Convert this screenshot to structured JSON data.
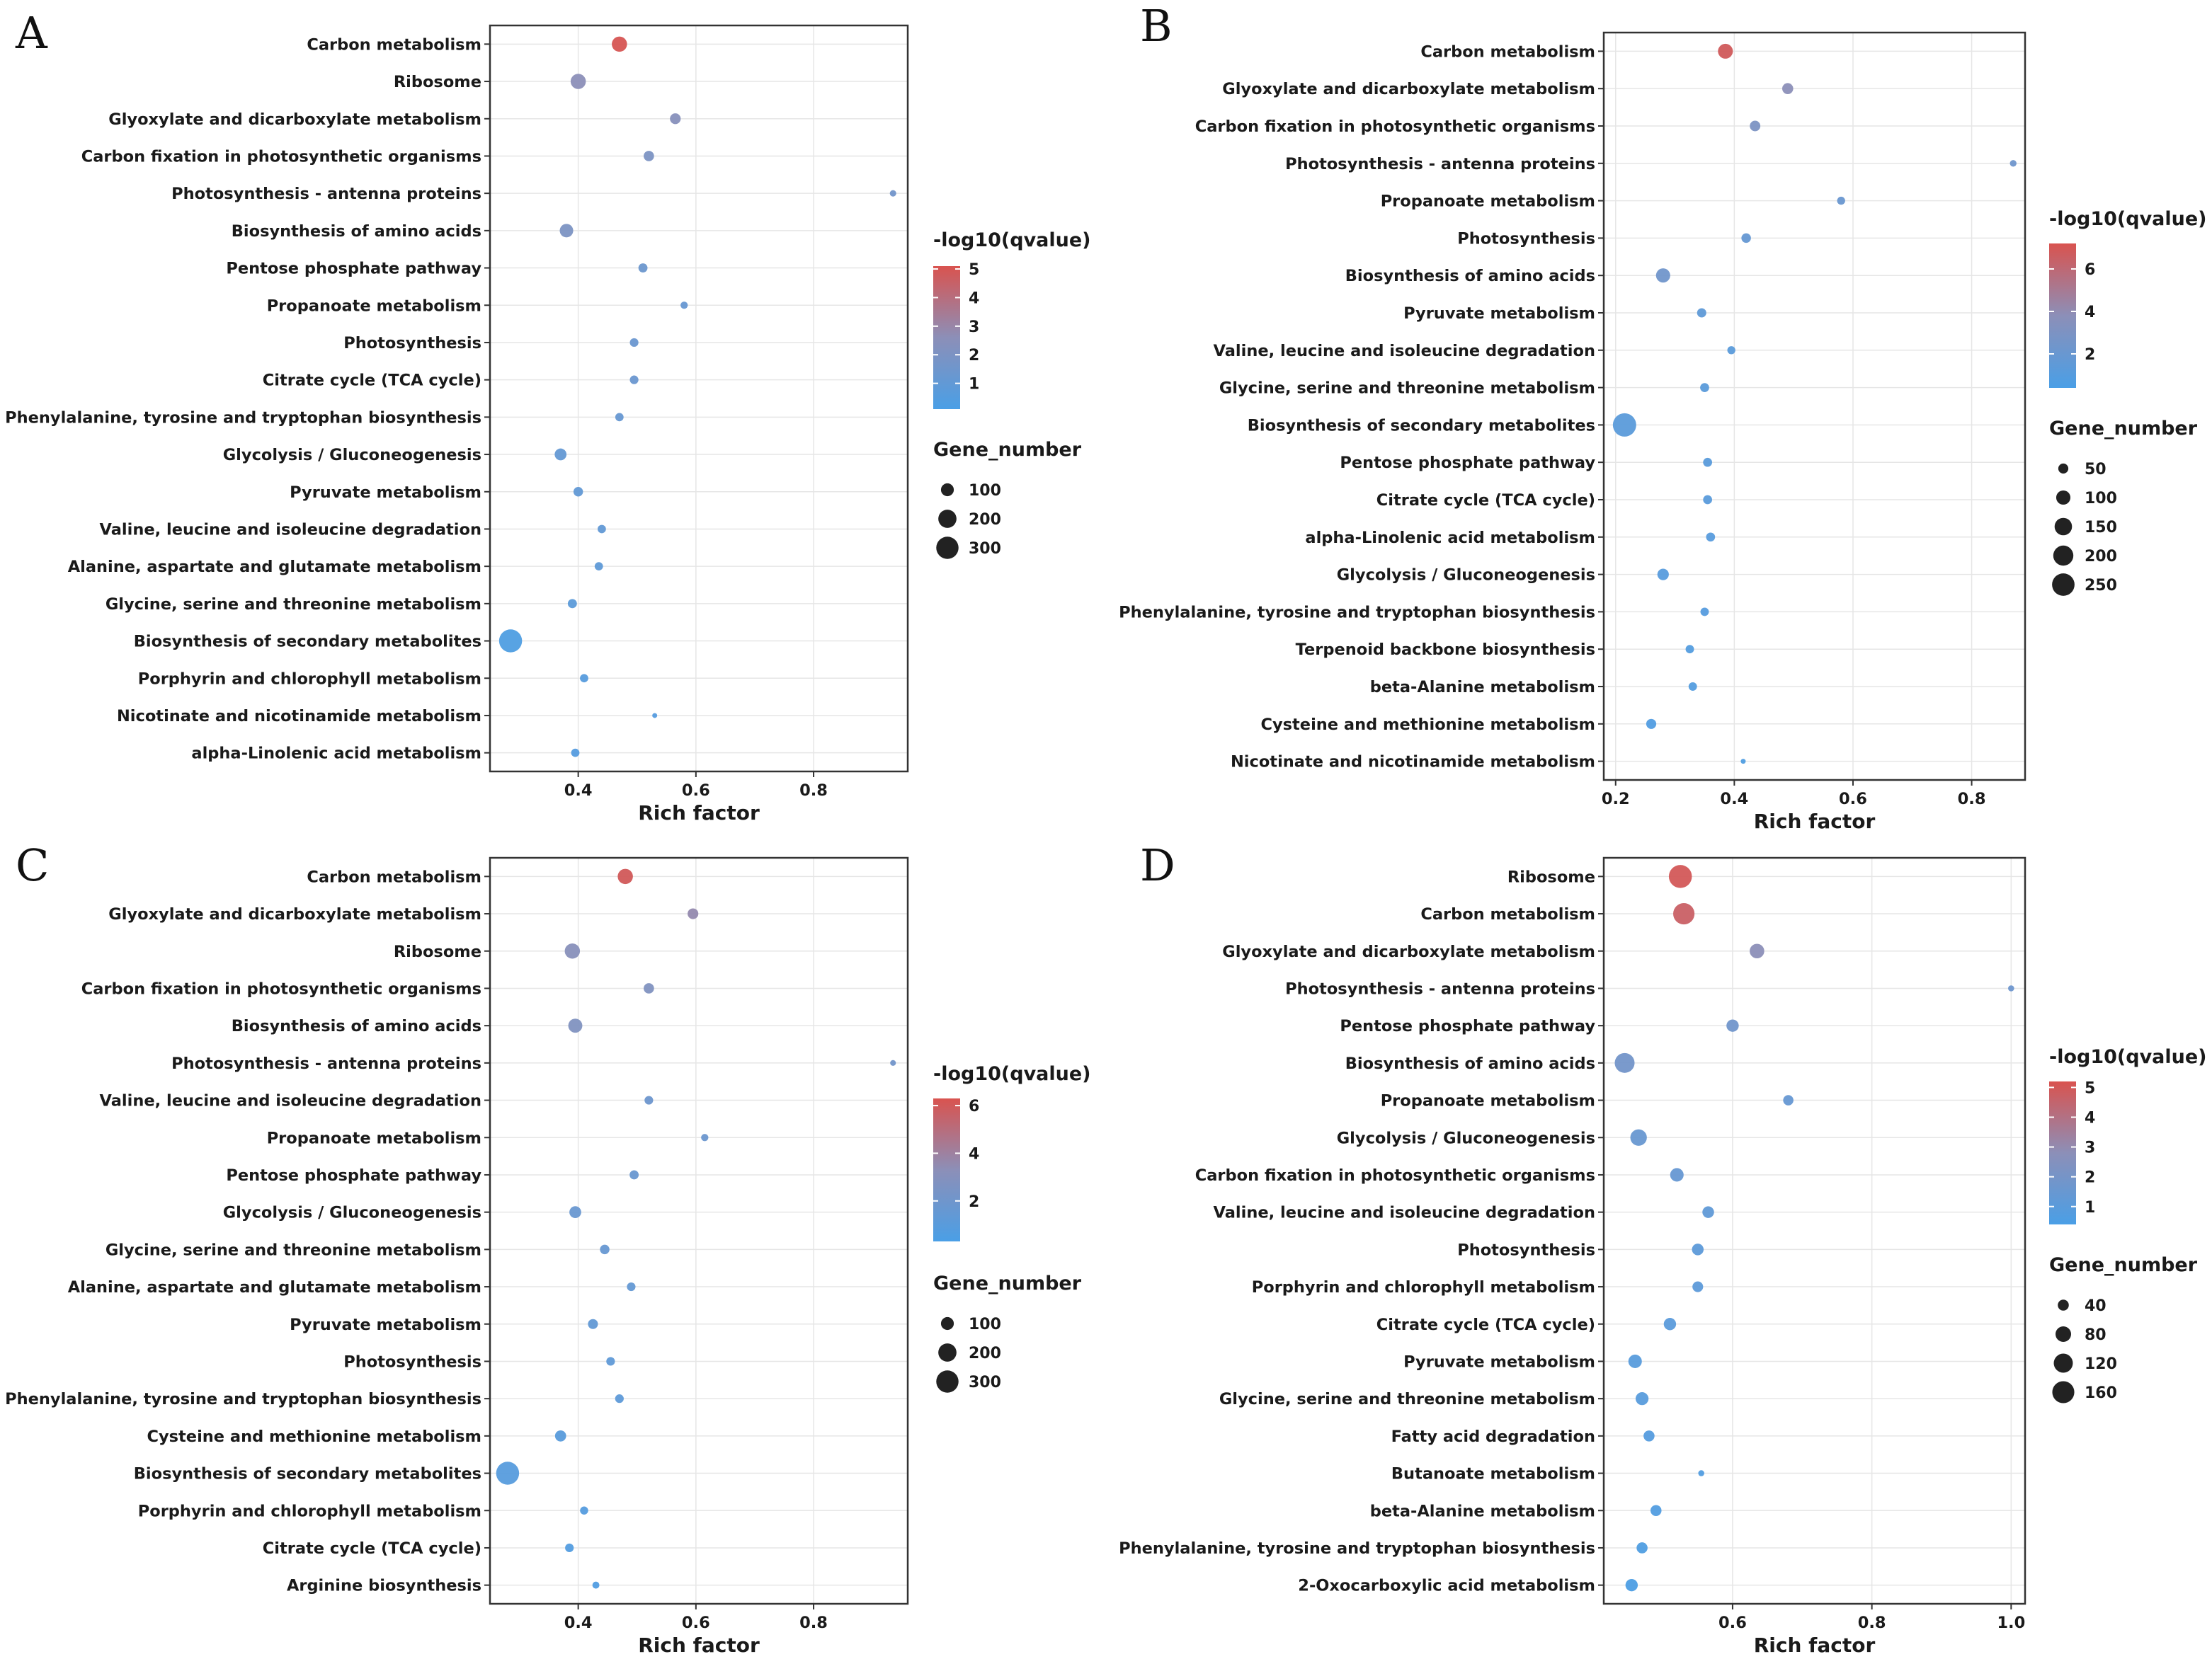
{
  "colors": {
    "low": "#4a9fe6",
    "mid": "#8c8fb8",
    "high": "#d9534f",
    "grid": "#e6e6e6",
    "frame": "#333333"
  },
  "chart_data": [
    {
      "type": "scatter",
      "panel": "A",
      "xlabel": "Rich factor",
      "xlim": [
        0.25,
        0.96
      ],
      "xticks": [
        0.4,
        0.6,
        0.8
      ],
      "xtick_labels": [
        "0.4",
        "0.6",
        "0.8"
      ],
      "color_title": "-log10(qvalue)",
      "color_range": [
        0.1,
        5.1
      ],
      "color_ticks": [
        1,
        2,
        3,
        4,
        5
      ],
      "color_tick_labels": [
        "1",
        "2",
        "3",
        "4",
        "5"
      ],
      "size_title": "Gene_number",
      "size_ref": 330,
      "size_ticks": [
        100,
        200,
        300
      ],
      "size_tick_labels": [
        "100",
        "200",
        "300"
      ],
      "points": [
        {
          "label": "Carbon metabolism",
          "x": 0.47,
          "genes": 140,
          "q": 5.0
        },
        {
          "label": "Ribosome",
          "x": 0.4,
          "genes": 140,
          "q": 2.6
        },
        {
          "label": "Glyoxylate and dicarboxylate metabolism",
          "x": 0.565,
          "genes": 70,
          "q": 2.4
        },
        {
          "label": "Carbon fixation in photosynthetic organisms",
          "x": 0.52,
          "genes": 65,
          "q": 2.0
        },
        {
          "label": "Photosynthesis - antenna proteins",
          "x": 0.935,
          "genes": 25,
          "q": 1.6
        },
        {
          "label": "Biosynthesis of amino acids",
          "x": 0.38,
          "genes": 110,
          "q": 2.0
        },
        {
          "label": "Pentose phosphate pathway",
          "x": 0.51,
          "genes": 50,
          "q": 1.4
        },
        {
          "label": "Propanoate metabolism",
          "x": 0.58,
          "genes": 32,
          "q": 1.2
        },
        {
          "label": "Photosynthesis",
          "x": 0.495,
          "genes": 45,
          "q": 1.3
        },
        {
          "label": "Citrate cycle (TCA cycle)",
          "x": 0.495,
          "genes": 45,
          "q": 1.3
        },
        {
          "label": "Phenylalanine, tyrosine and tryptophan biosynthesis",
          "x": 0.47,
          "genes": 42,
          "q": 1.2
        },
        {
          "label": "Glycolysis / Gluconeogenesis",
          "x": 0.37,
          "genes": 85,
          "q": 1.1
        },
        {
          "label": "Pyruvate metabolism",
          "x": 0.4,
          "genes": 55,
          "q": 1.0
        },
        {
          "label": "Valine, leucine and isoleucine degradation",
          "x": 0.44,
          "genes": 42,
          "q": 1.0
        },
        {
          "label": "Alanine, aspartate and glutamate metabolism",
          "x": 0.435,
          "genes": 42,
          "q": 0.9
        },
        {
          "label": "Glycine, serine and threonine metabolism",
          "x": 0.39,
          "genes": 50,
          "q": 0.8
        },
        {
          "label": "Biosynthesis of secondary metabolites",
          "x": 0.285,
          "genes": 320,
          "q": 0.3
        },
        {
          "label": "Porphyrin and chlorophyll metabolism",
          "x": 0.41,
          "genes": 42,
          "q": 0.6
        },
        {
          "label": "Nicotinate and nicotinamide metabolism",
          "x": 0.53,
          "genes": 12,
          "q": 0.5
        },
        {
          "label": "alpha-Linolenic acid metabolism",
          "x": 0.395,
          "genes": 42,
          "q": 0.5
        }
      ]
    },
    {
      "type": "scatter",
      "panel": "B",
      "xlabel": "Rich factor",
      "xlim": [
        0.18,
        0.89
      ],
      "xticks": [
        0.2,
        0.4,
        0.6,
        0.8
      ],
      "xtick_labels": [
        "0.2",
        "0.4",
        "0.6",
        "0.8"
      ],
      "color_title": "-log10(qvalue)",
      "color_range": [
        0.4,
        7.2
      ],
      "color_ticks": [
        2,
        4,
        6
      ],
      "color_tick_labels": [
        "2",
        "4",
        "6"
      ],
      "size_title": "Gene_number",
      "size_ref": 270,
      "size_ticks": [
        50,
        100,
        150,
        200,
        250
      ],
      "size_tick_labels": [
        "50",
        "100",
        "150",
        "200",
        "250"
      ],
      "points": [
        {
          "label": "Carbon metabolism",
          "x": 0.385,
          "genes": 110,
          "q": 6.8
        },
        {
          "label": "Glyoxylate and dicarboxylate metabolism",
          "x": 0.49,
          "genes": 60,
          "q": 3.8
        },
        {
          "label": "Carbon fixation in photosynthetic organisms",
          "x": 0.435,
          "genes": 55,
          "q": 3.0
        },
        {
          "label": "Photosynthesis - antenna proteins",
          "x": 0.87,
          "genes": 22,
          "q": 2.3
        },
        {
          "label": "Propanoate metabolism",
          "x": 0.58,
          "genes": 32,
          "q": 2.0
        },
        {
          "label": "Photosynthesis",
          "x": 0.42,
          "genes": 45,
          "q": 1.8
        },
        {
          "label": "Biosynthesis of amino acids",
          "x": 0.28,
          "genes": 100,
          "q": 2.4
        },
        {
          "label": "Pyruvate metabolism",
          "x": 0.345,
          "genes": 42,
          "q": 1.5
        },
        {
          "label": "Valine, leucine and isoleucine degradation",
          "x": 0.395,
          "genes": 32,
          "q": 1.3
        },
        {
          "label": "Glycine, serine and threonine metabolism",
          "x": 0.35,
          "genes": 40,
          "q": 1.3
        },
        {
          "label": "Biosynthesis of secondary metabolites",
          "x": 0.215,
          "genes": 270,
          "q": 1.3
        },
        {
          "label": "Pentose phosphate pathway",
          "x": 0.355,
          "genes": 40,
          "q": 1.2
        },
        {
          "label": "Citrate cycle (TCA cycle)",
          "x": 0.355,
          "genes": 40,
          "q": 1.2
        },
        {
          "label": "alpha-Linolenic acid metabolism",
          "x": 0.36,
          "genes": 40,
          "q": 1.1
        },
        {
          "label": "Glycolysis / Gluconeogenesis",
          "x": 0.28,
          "genes": 65,
          "q": 1.1
        },
        {
          "label": "Phenylalanine, tyrosine and tryptophan biosynthesis",
          "x": 0.35,
          "genes": 35,
          "q": 1.0
        },
        {
          "label": "Terpenoid backbone biosynthesis",
          "x": 0.325,
          "genes": 35,
          "q": 0.9
        },
        {
          "label": "beta-Alanine metabolism",
          "x": 0.33,
          "genes": 35,
          "q": 0.9
        },
        {
          "label": "Cysteine and methionine metabolism",
          "x": 0.26,
          "genes": 50,
          "q": 0.8
        },
        {
          "label": "Nicotinate and nicotinamide metabolism",
          "x": 0.415,
          "genes": 12,
          "q": 0.7
        }
      ]
    },
    {
      "type": "scatter",
      "panel": "C",
      "xlabel": "Rich factor",
      "xlim": [
        0.25,
        0.96
      ],
      "xticks": [
        0.4,
        0.6,
        0.8
      ],
      "xtick_labels": [
        "0.4",
        "0.6",
        "0.8"
      ],
      "color_title": "-log10(qvalue)",
      "color_range": [
        0.3,
        6.3
      ],
      "color_ticks": [
        2,
        4,
        6
      ],
      "color_tick_labels": [
        "2",
        "4",
        "6"
      ],
      "size_title": "Gene_number",
      "size_ref": 330,
      "size_ticks": [
        100,
        200,
        300
      ],
      "size_tick_labels": [
        "100",
        "200",
        "300"
      ],
      "points": [
        {
          "label": "Carbon metabolism",
          "x": 0.48,
          "genes": 140,
          "q": 6.0
        },
        {
          "label": "Glyoxylate and dicarboxylate metabolism",
          "x": 0.595,
          "genes": 70,
          "q": 3.6
        },
        {
          "label": "Ribosome",
          "x": 0.39,
          "genes": 140,
          "q": 3.1
        },
        {
          "label": "Carbon fixation in photosynthetic organisms",
          "x": 0.52,
          "genes": 65,
          "q": 2.8
        },
        {
          "label": "Biosynthesis of amino acids",
          "x": 0.395,
          "genes": 120,
          "q": 2.8
        },
        {
          "label": "Photosynthesis - antenna proteins",
          "x": 0.935,
          "genes": 20,
          "q": 2.1
        },
        {
          "label": "Valine, leucine and isoleucine degradation",
          "x": 0.52,
          "genes": 45,
          "q": 1.9
        },
        {
          "label": "Propanoate metabolism",
          "x": 0.615,
          "genes": 32,
          "q": 1.8
        },
        {
          "label": "Pentose phosphate pathway",
          "x": 0.495,
          "genes": 50,
          "q": 1.7
        },
        {
          "label": "Glycolysis / Gluconeogenesis",
          "x": 0.395,
          "genes": 85,
          "q": 1.7
        },
        {
          "label": "Glycine, serine and threonine metabolism",
          "x": 0.445,
          "genes": 55,
          "q": 1.6
        },
        {
          "label": "Alanine, aspartate and glutamate metabolism",
          "x": 0.49,
          "genes": 45,
          "q": 1.5
        },
        {
          "label": "Pyruvate metabolism",
          "x": 0.425,
          "genes": 60,
          "q": 1.4
        },
        {
          "label": "Photosynthesis",
          "x": 0.455,
          "genes": 45,
          "q": 1.3
        },
        {
          "label": "Phenylalanine, tyrosine and tryptophan biosynthesis",
          "x": 0.47,
          "genes": 45,
          "q": 1.2
        },
        {
          "label": "Cysteine and methionine metabolism",
          "x": 0.37,
          "genes": 75,
          "q": 1.0
        },
        {
          "label": "Biosynthesis of secondary metabolites",
          "x": 0.28,
          "genes": 320,
          "q": 0.9
        },
        {
          "label": "Porphyrin and chlorophyll metabolism",
          "x": 0.41,
          "genes": 40,
          "q": 0.8
        },
        {
          "label": "Citrate cycle (TCA cycle)",
          "x": 0.385,
          "genes": 45,
          "q": 0.7
        },
        {
          "label": "Arginine biosynthesis",
          "x": 0.43,
          "genes": 30,
          "q": 0.6
        }
      ]
    },
    {
      "type": "scatter",
      "panel": "D",
      "xlabel": "Rich factor",
      "xlim": [
        0.415,
        1.02
      ],
      "xticks": [
        0.6,
        0.8,
        1.0
      ],
      "xtick_labels": [
        "0.6",
        "0.8",
        "1.0"
      ],
      "color_title": "-log10(qvalue)",
      "color_range": [
        0.4,
        5.2
      ],
      "color_ticks": [
        1,
        2,
        3,
        4,
        5
      ],
      "color_tick_labels": [
        "1",
        "2",
        "3",
        "4",
        "5"
      ],
      "size_title": "Gene_number",
      "size_ref": 180,
      "size_ticks": [
        40,
        80,
        120,
        160
      ],
      "size_tick_labels": [
        "40",
        "80",
        "120",
        "160"
      ],
      "points": [
        {
          "label": "Ribosome",
          "x": 0.525,
          "genes": 175,
          "q": 5.0
        },
        {
          "label": "Carbon metabolism",
          "x": 0.53,
          "genes": 150,
          "q": 4.7
        },
        {
          "label": "Glyoxylate and dicarboxylate metabolism",
          "x": 0.635,
          "genes": 70,
          "q": 2.8
        },
        {
          "label": "Photosynthesis - antenna proteins",
          "x": 1.0,
          "genes": 12,
          "q": 1.7
        },
        {
          "label": "Pentose phosphate pathway",
          "x": 0.6,
          "genes": 50,
          "q": 1.8
        },
        {
          "label": "Biosynthesis of amino acids",
          "x": 0.445,
          "genes": 130,
          "q": 1.9
        },
        {
          "label": "Propanoate metabolism",
          "x": 0.68,
          "genes": 35,
          "q": 1.4
        },
        {
          "label": "Glycolysis / Gluconeogenesis",
          "x": 0.465,
          "genes": 90,
          "q": 1.5
        },
        {
          "label": "Carbon fixation in photosynthetic organisms",
          "x": 0.52,
          "genes": 60,
          "q": 1.4
        },
        {
          "label": "Valine, leucine and isoleucine degradation",
          "x": 0.565,
          "genes": 45,
          "q": 1.2
        },
        {
          "label": "Photosynthesis",
          "x": 0.55,
          "genes": 45,
          "q": 1.1
        },
        {
          "label": "Porphyrin and chlorophyll metabolism",
          "x": 0.55,
          "genes": 38,
          "q": 1.1
        },
        {
          "label": "Citrate cycle (TCA cycle)",
          "x": 0.51,
          "genes": 50,
          "q": 1.0
        },
        {
          "label": "Pyruvate metabolism",
          "x": 0.46,
          "genes": 60,
          "q": 0.9
        },
        {
          "label": "Glycine, serine and threonine metabolism",
          "x": 0.47,
          "genes": 55,
          "q": 0.9
        },
        {
          "label": "Fatty acid degradation",
          "x": 0.48,
          "genes": 40,
          "q": 0.8
        },
        {
          "label": "Butanoate metabolism",
          "x": 0.555,
          "genes": 12,
          "q": 0.7
        },
        {
          "label": "beta-Alanine metabolism",
          "x": 0.49,
          "genes": 40,
          "q": 0.7
        },
        {
          "label": "Phenylalanine, tyrosine and tryptophan biosynthesis",
          "x": 0.47,
          "genes": 40,
          "q": 0.6
        },
        {
          "label": "2-Oxocarboxylic acid metabolism",
          "x": 0.455,
          "genes": 50,
          "q": 0.5
        }
      ]
    }
  ]
}
